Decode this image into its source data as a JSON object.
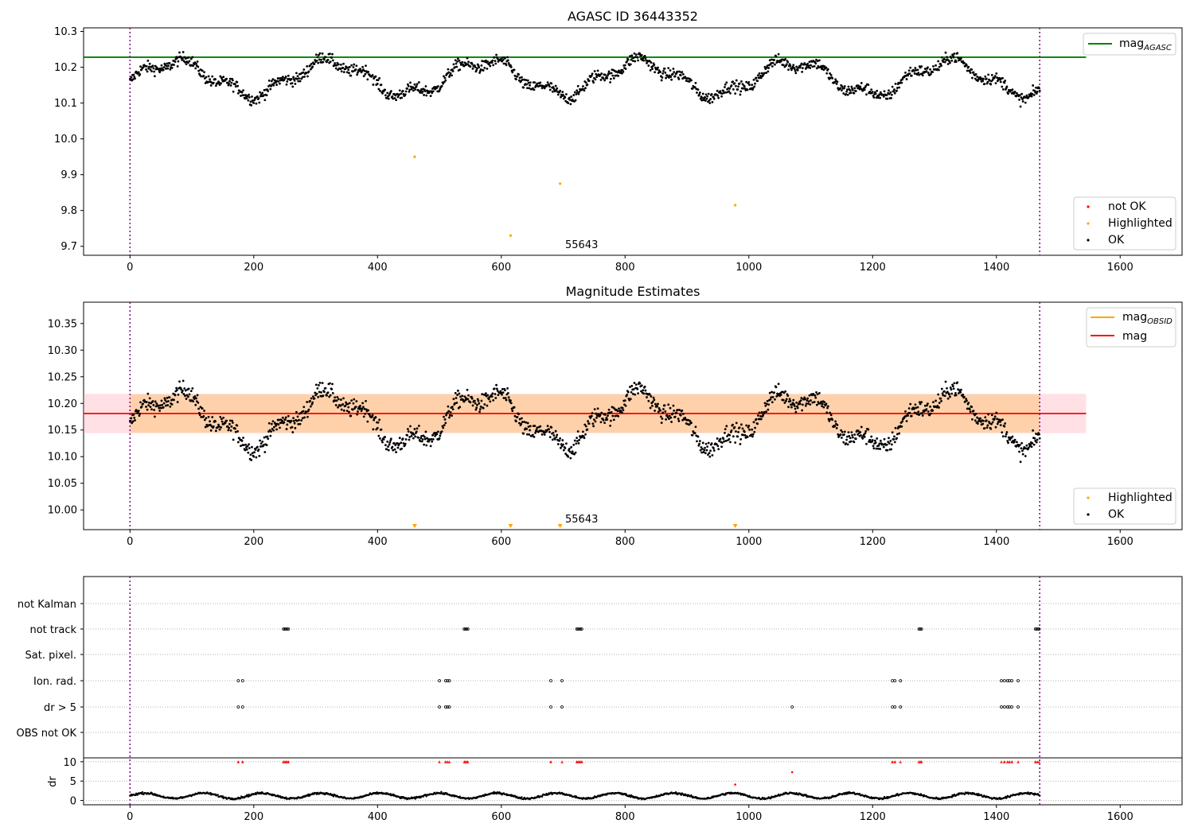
{
  "chart_data": [
    {
      "type": "scatter",
      "title": "AGASC ID 36443352",
      "xlabel": "",
      "ylabel": "",
      "xlim": [
        -75,
        1700
      ],
      "ylim": [
        9.675,
        10.31
      ],
      "x_ticks": [
        "0",
        "200",
        "400",
        "600",
        "800",
        "1000",
        "1200",
        "1400",
        "1600"
      ],
      "y_ticks": [
        "9.7",
        "9.8",
        "9.9",
        "10.0",
        "10.1",
        "10.2",
        "10.3"
      ],
      "grid": false,
      "legend_upper": "top-right",
      "legend_lower": "bottom-right",
      "series": [
        {
          "name": "mag_AGASC",
          "type": "hline",
          "y": 10.228,
          "x_range": [
            -75,
            1545
          ],
          "color": "#008000"
        },
        {
          "name": "OK",
          "color": "#000000",
          "description": "about 1470 black points oscillating between 10.07 and 10.27"
        },
        {
          "name": "Highlighted",
          "color": "#ffa500",
          "points": [
            [
              460,
              9.95
            ],
            [
              695,
              9.875
            ],
            [
              978,
              9.815
            ],
            [
              615,
              9.73
            ]
          ]
        },
        {
          "name": "not OK",
          "color": "#ff0000",
          "points": []
        }
      ],
      "vlines": [
        0,
        1470
      ],
      "annotation": {
        "text": "55643",
        "x": 703,
        "y": 9.69
      }
    },
    {
      "type": "scatter",
      "title": "Magnitude Estimates",
      "xlabel": "",
      "ylabel": "",
      "xlim": [
        -75,
        1700
      ],
      "ylim": [
        9.963,
        10.39
      ],
      "x_ticks": [
        "0",
        "200",
        "400",
        "600",
        "800",
        "1000",
        "1200",
        "1400",
        "1600"
      ],
      "y_ticks": [
        "10.00",
        "10.05",
        "10.10",
        "10.15",
        "10.20",
        "10.25",
        "10.30",
        "10.35"
      ],
      "grid": false,
      "legend_upper": "top-right",
      "legend_lower": "bottom-right",
      "series": [
        {
          "name": "mag_OBSID",
          "type": "hline",
          "y": 10.181,
          "color": "#ffa500",
          "band": [
            10.145,
            10.217
          ]
        },
        {
          "name": "mag",
          "type": "hline",
          "y": 10.181,
          "x_range": [
            -75,
            1545
          ],
          "color": "#ff0000",
          "band": [
            10.144,
            10.218
          ]
        },
        {
          "name": "OK",
          "color": "#000000",
          "description": "same points as top panel"
        },
        {
          "name": "Highlighted",
          "color": "#ffa500",
          "marker": "triangle-down",
          "x": [
            460,
            615,
            695,
            978
          ]
        }
      ],
      "vlines": [
        0,
        1470
      ],
      "annotation": {
        "text": "55643",
        "x": 703,
        "y": 9.978
      }
    },
    {
      "type": "scatter",
      "title": "",
      "xlim": [
        -75,
        1700
      ],
      "x_ticks": [
        "0",
        "200",
        "400",
        "600",
        "800",
        "1000",
        "1200",
        "1400",
        "1600"
      ],
      "flag_rows": [
        "not Kalman",
        "not track",
        "Sat. pixel.",
        "Ion. rad.",
        "dr > 5",
        "OBS not OK"
      ],
      "flags": {
        "not track": [
          [
            248,
            256
          ],
          [
            540,
            546
          ],
          [
            722,
            730
          ],
          [
            1275,
            1280
          ],
          [
            1463,
            1470
          ]
        ],
        "Ion. rad.": [
          175,
          182,
          500,
          510,
          513,
          516,
          680,
          698,
          1232,
          1236,
          1245,
          1408,
          1413,
          1418,
          1421,
          1425,
          1435
        ],
        "dr > 5": [
          175,
          182,
          500,
          510,
          513,
          516,
          680,
          698,
          1070,
          1232,
          1236,
          1245,
          1408,
          1413,
          1418,
          1421,
          1425,
          1435
        ]
      },
      "dr": {
        "ylabel": "dr",
        "y_ticks": [
          "0",
          "5",
          "10"
        ],
        "ylim": [
          -0.5,
          11
        ],
        "clipped_red": [
          175,
          182,
          248,
          250,
          252,
          254,
          256,
          500,
          510,
          513,
          516,
          540,
          542,
          544,
          546,
          680,
          698,
          722,
          724,
          726,
          728,
          730,
          1232,
          1236,
          1245,
          1275,
          1277,
          1279,
          1408,
          1413,
          1418,
          1421,
          1425,
          1435,
          1463,
          1466,
          1469
        ],
        "red_points": [
          [
            978,
            4.1
          ],
          [
            1070,
            7.3
          ]
        ],
        "description": "black dr values mostly between 0.5 and 2.5"
      },
      "vlines": [
        0,
        1470
      ]
    }
  ]
}
